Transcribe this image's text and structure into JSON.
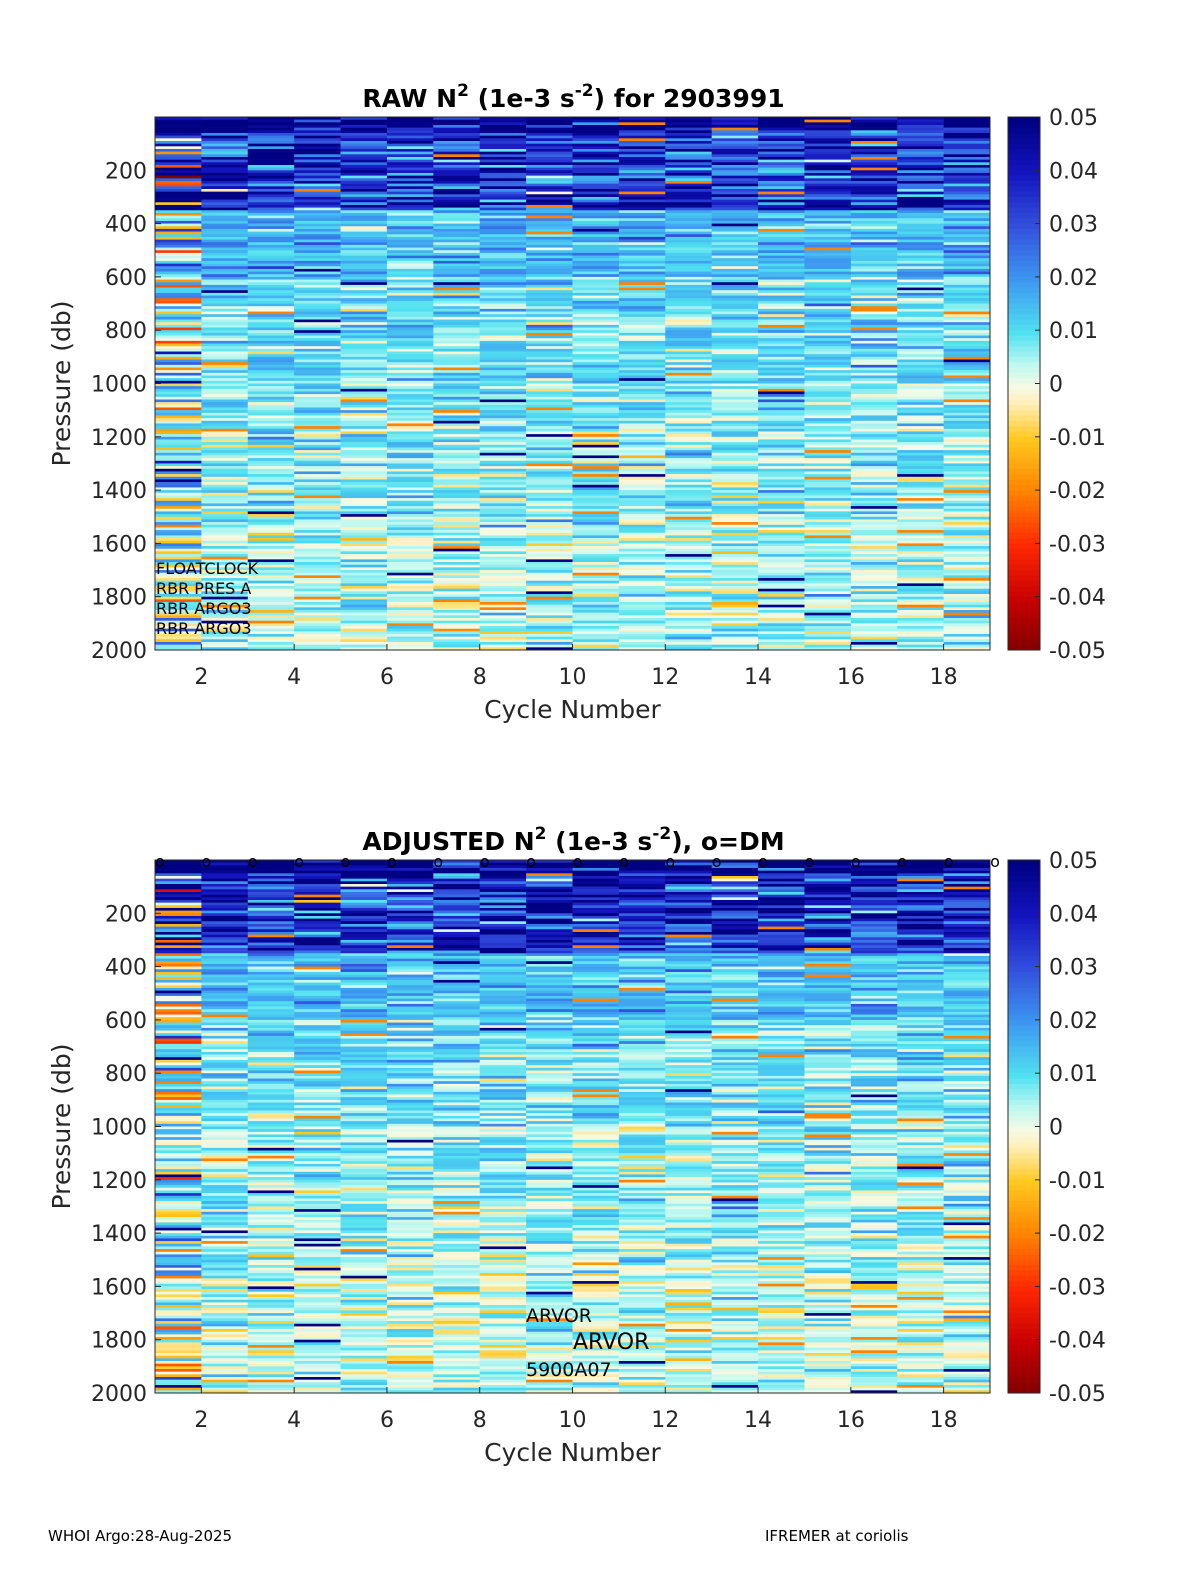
{
  "chart_data": [
    {
      "type": "heatmap",
      "title_parts": [
        "RAW N",
        "2",
        " (1e-3 s",
        "-2",
        ") for 2903991"
      ],
      "xlabel": "Cycle Number",
      "ylabel": "Pressure (db)",
      "xlim": [
        1,
        19
      ],
      "ylim": [
        0,
        2000
      ],
      "y_reversed": true,
      "xticks": [
        "2",
        "4",
        "6",
        "8",
        "10",
        "12",
        "14",
        "16",
        "18"
      ],
      "yticks": [
        "200",
        "400",
        "600",
        "800",
        "1000",
        "1200",
        "1400",
        "1600",
        "1800",
        "2000"
      ],
      "colorbar": {
        "clim": [
          -0.05,
          0.05
        ],
        "ticks": [
          "0.05",
          "0.04",
          "0.03",
          "0.02",
          "0.01",
          "0",
          "-0.01",
          "-0.02",
          "-0.03",
          "-0.04",
          "-0.05"
        ]
      },
      "cycles": [
        1,
        2,
        3,
        4,
        5,
        6,
        7,
        8,
        9,
        10,
        11,
        12,
        13,
        14,
        15,
        16,
        17,
        18
      ],
      "pressure_bands_db": [
        [
          0,
          50
        ],
        [
          50,
          350
        ],
        [
          350,
          600
        ],
        [
          600,
          1000
        ],
        [
          1000,
          1500
        ],
        [
          1500,
          2000
        ]
      ],
      "band_mean_values": [
        0.05,
        0.035,
        0.015,
        0.01,
        0.007,
        0.004
      ],
      "noisy_cycles": [
        1
      ],
      "annotations": [
        "FLOATCLOCK",
        "RBR PRES A",
        "RBR ARGO3",
        "RBR ARGO3"
      ],
      "dm_markers": false
    },
    {
      "type": "heatmap",
      "title_parts": [
        "ADJUSTED N",
        "2",
        " (1e-3 s",
        "-2",
        "), o=DM"
      ],
      "xlabel": "Cycle Number",
      "ylabel": "Pressure (db)",
      "xlim": [
        1,
        19
      ],
      "ylim": [
        0,
        2000
      ],
      "y_reversed": true,
      "xticks": [
        "2",
        "4",
        "6",
        "8",
        "10",
        "12",
        "14",
        "16",
        "18"
      ],
      "yticks": [
        "200",
        "400",
        "600",
        "800",
        "1000",
        "1200",
        "1400",
        "1600",
        "1800",
        "2000"
      ],
      "colorbar": {
        "clim": [
          -0.05,
          0.05
        ],
        "ticks": [
          "0.05",
          "0.04",
          "0.03",
          "0.02",
          "0.01",
          "0",
          "-0.01",
          "-0.02",
          "-0.03",
          "-0.04",
          "-0.05"
        ]
      },
      "cycles": [
        1,
        2,
        3,
        4,
        5,
        6,
        7,
        8,
        9,
        10,
        11,
        12,
        13,
        14,
        15,
        16,
        17,
        18
      ],
      "pressure_bands_db": [
        [
          0,
          50
        ],
        [
          50,
          350
        ],
        [
          350,
          600
        ],
        [
          600,
          1000
        ],
        [
          1000,
          1500
        ],
        [
          1500,
          2000
        ]
      ],
      "band_mean_values": [
        0.05,
        0.035,
        0.014,
        0.009,
        0.006,
        0.003
      ],
      "noisy_cycles": [
        1
      ],
      "annotations": [
        "ARVOR",
        "ARVOR",
        "5900A07"
      ],
      "dm_markers": true,
      "dm_cycles": [
        1,
        2,
        3,
        4,
        5,
        6,
        7,
        8,
        9,
        10,
        11,
        12,
        13,
        14,
        15,
        16,
        17,
        18,
        19
      ],
      "dm_marker_label": "o"
    }
  ],
  "footer": {
    "left": "WHOI Argo:28-Aug-2025",
    "right": "IFREMER at coriolis"
  }
}
